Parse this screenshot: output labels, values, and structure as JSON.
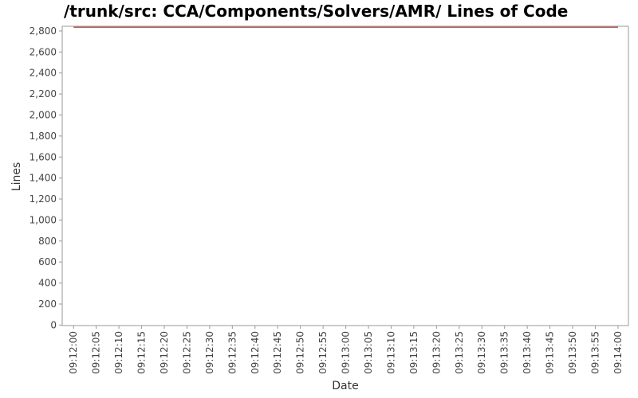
{
  "chart_data": {
    "type": "line",
    "title": "/trunk/src: CCA/Components/Solvers/AMR/ Lines of Code",
    "x_label": "Date",
    "y_label": "Lines",
    "x": [
      "09:12:00",
      "09:14:00"
    ],
    "series": [
      {
        "name": "Lines",
        "color": "#a0302a",
        "values": [
          2836,
          2836
        ]
      }
    ],
    "xlim": [
      "09:11:57.5",
      "09:14:02.3"
    ],
    "xticks": [
      "09:12:00",
      "09:12:05",
      "09:12:10",
      "09:12:15",
      "09:12:20",
      "09:12:25",
      "09:12:30",
      "09:12:35",
      "09:12:40",
      "09:12:45",
      "09:12:50",
      "09:12:55",
      "09:13:00",
      "09:13:05",
      "09:13:10",
      "09:13:15",
      "09:13:20",
      "09:13:25",
      "09:13:30",
      "09:13:35",
      "09:13:40",
      "09:13:45",
      "09:13:50",
      "09:13:55",
      "09:14:00"
    ],
    "ylim": [
      -5,
      2845
    ],
    "yticks": [
      0,
      {
        "value": 200,
        "label": "200"
      },
      400,
      600,
      800,
      {
        "value": 1000,
        "label": "1,000"
      },
      {
        "value": 1200,
        "label": "1,200"
      },
      {
        "value": 1400,
        "label": "1,400"
      },
      {
        "value": 1600,
        "label": "1,600"
      },
      {
        "value": 1800,
        "label": "1,800"
      },
      {
        "value": 2000,
        "label": "2,000"
      },
      {
        "value": 2200,
        "label": "2,200"
      },
      {
        "value": 2400,
        "label": "2,400"
      },
      {
        "value": 2600,
        "label": "2,600"
      },
      {
        "value": 2800,
        "label": "2,800"
      }
    ]
  }
}
